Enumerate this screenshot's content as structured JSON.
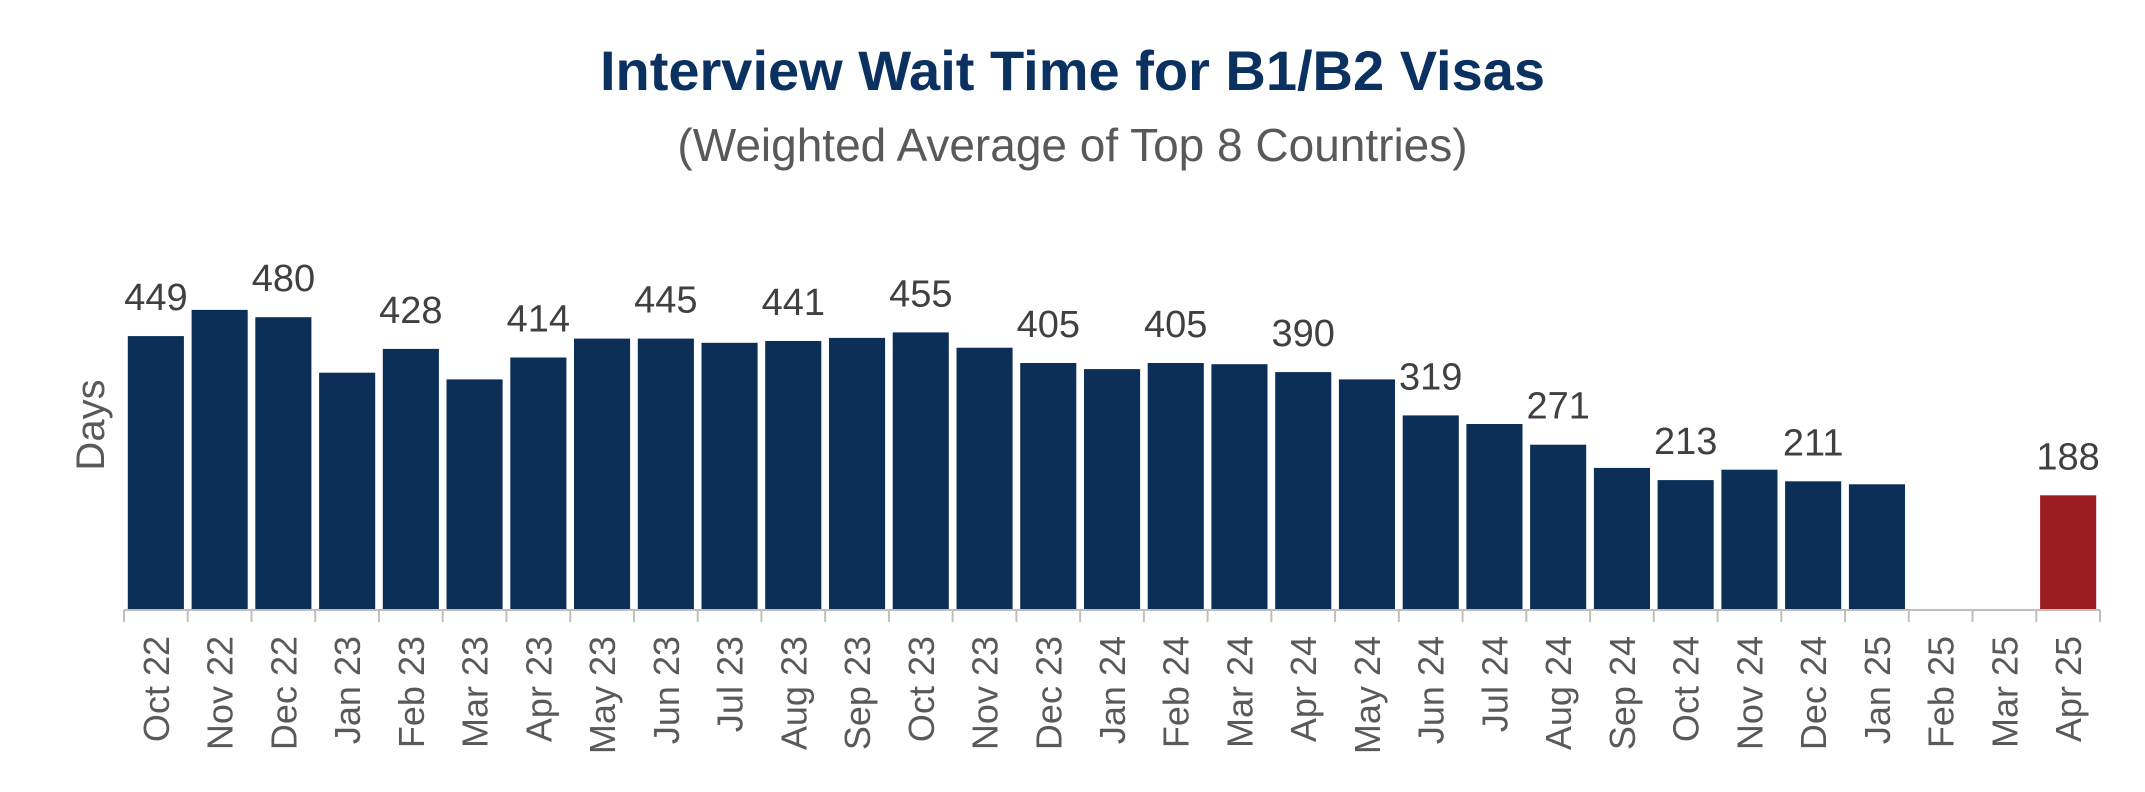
{
  "chart_data": {
    "type": "bar",
    "title": "Interview Wait Time for B1/B2 Visas",
    "subtitle": "(Weighted Average of Top 8 Countries)",
    "xlabel": "",
    "ylabel": "Days",
    "categories": [
      "Oct 22",
      "Nov 22",
      "Dec 22",
      "Jan 23",
      "Feb 23",
      "Mar 23",
      "Apr 23",
      "May 23",
      "Jun 23",
      "Jul 23",
      "Aug 23",
      "Sep 23",
      "Oct 23",
      "Nov 23",
      "Dec 23",
      "Jan 24",
      "Feb 24",
      "Mar 24",
      "Apr 24",
      "May 24",
      "Jun 24",
      "Jul 24",
      "Aug 24",
      "Sep 24",
      "Oct 24",
      "Nov 24",
      "Dec 24",
      "Jan 25",
      "Feb 25",
      "Mar 25",
      "Apr 25"
    ],
    "values": [
      449,
      492,
      480,
      389,
      428,
      378,
      414,
      445,
      445,
      438,
      441,
      446,
      455,
      430,
      405,
      395,
      405,
      403,
      390,
      378,
      319,
      305,
      271,
      233,
      213,
      230,
      211,
      206,
      null,
      null,
      188
    ],
    "data_labels": [
      "449",
      "",
      "480",
      "",
      "428",
      "",
      "414",
      "",
      "445",
      "",
      "441",
      "",
      "455",
      "",
      "405",
      "",
      "405",
      "",
      "390",
      "",
      "319",
      "",
      "271",
      "",
      "213",
      "",
      "211",
      "",
      "",
      "",
      "188"
    ],
    "bar_colors": [
      "#0b2f57",
      "#0b2f57",
      "#0b2f57",
      "#0b2f57",
      "#0b2f57",
      "#0b2f57",
      "#0b2f57",
      "#0b2f57",
      "#0b2f57",
      "#0b2f57",
      "#0b2f57",
      "#0b2f57",
      "#0b2f57",
      "#0b2f57",
      "#0b2f57",
      "#0b2f57",
      "#0b2f57",
      "#0b2f57",
      "#0b2f57",
      "#0b2f57",
      "#0b2f57",
      "#0b2f57",
      "#0b2f57",
      "#0b2f57",
      "#0b2f57",
      "#0b2f57",
      "#0b2f57",
      "#0b2f57",
      "#0b2f57",
      "#0b2f57",
      "#9b1c20"
    ],
    "ylim": [
      0,
      500
    ],
    "grid": false,
    "legend": "none",
    "colors": {
      "title": "#0b3160",
      "text": "#595959",
      "label": "#404040",
      "axis": "#bfbfbf"
    }
  }
}
